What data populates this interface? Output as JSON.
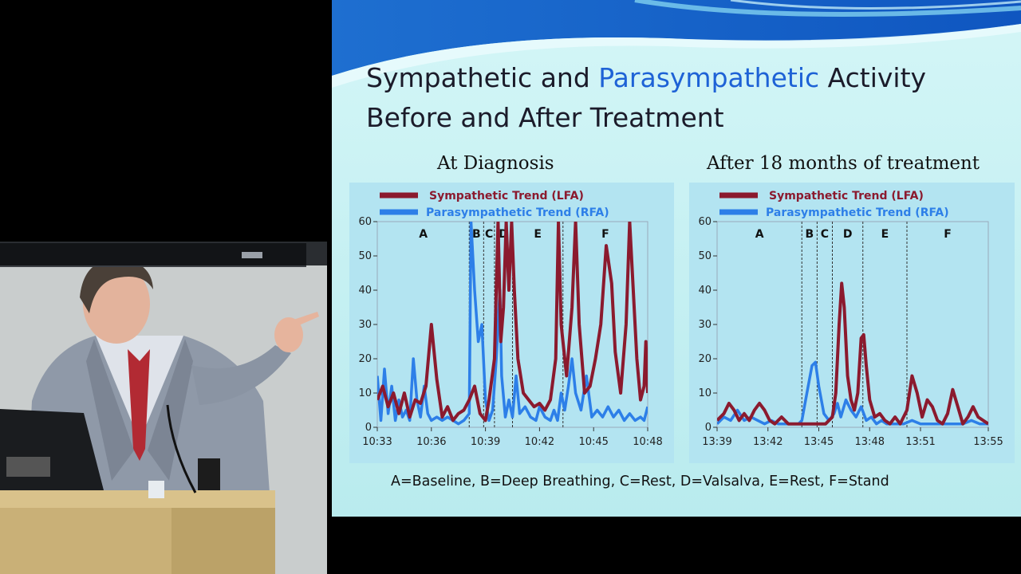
{
  "slide": {
    "title_line1_part1": "Sympathetic and ",
    "title_line1_highlight": "Parasympathetic",
    "title_line1_part2": " Activity",
    "title_line2": "Before and After Treatment",
    "subtitle_left": "At Diagnosis",
    "subtitle_right": "After 18 months of treatment",
    "caption": "A=Baseline, B=Deep Breathing, C=Rest, D=Valsalva, E=Rest, F=Stand"
  },
  "colors": {
    "sympathetic": "#8b1a2e",
    "parasympathetic": "#2d7fe8",
    "title_accent": "#1e62d6",
    "panel_bg": "#b3e4f1"
  },
  "chart_data": [
    {
      "type": "line",
      "title": "At Diagnosis",
      "ylim": [
        0,
        60
      ],
      "yticks": [
        0,
        10,
        20,
        30,
        40,
        50,
        60
      ],
      "xlim": [
        0,
        15
      ],
      "xticks": [
        {
          "x": 0,
          "label": "10:33"
        },
        {
          "x": 3,
          "label": "10:36"
        },
        {
          "x": 6,
          "label": "10:39"
        },
        {
          "x": 9,
          "label": "10:42"
        },
        {
          "x": 12,
          "label": "10:45"
        },
        {
          "x": 15,
          "label": "10:48"
        }
      ],
      "phases": [
        {
          "label": "A",
          "start": 0,
          "end": 5.1
        },
        {
          "label": "B",
          "start": 5.1,
          "end": 5.9
        },
        {
          "label": "C",
          "start": 5.9,
          "end": 6.5
        },
        {
          "label": "D",
          "start": 6.5,
          "end": 7.5
        },
        {
          "label": "E",
          "start": 7.5,
          "end": 10.3
        },
        {
          "label": "F",
          "start": 10.3,
          "end": 15
        }
      ],
      "series": [
        {
          "name": "Sympathetic Trend (LFA)",
          "points": [
            [
              0,
              8
            ],
            [
              0.3,
              12
            ],
            [
              0.6,
              6
            ],
            [
              0.9,
              10
            ],
            [
              1.2,
              4
            ],
            [
              1.5,
              10
            ],
            [
              1.8,
              3
            ],
            [
              2.1,
              8
            ],
            [
              2.4,
              7
            ],
            [
              2.7,
              12
            ],
            [
              3.0,
              30
            ],
            [
              3.3,
              14
            ],
            [
              3.6,
              3
            ],
            [
              3.9,
              6
            ],
            [
              4.2,
              2
            ],
            [
              4.5,
              4
            ],
            [
              4.8,
              5
            ],
            [
              5.1,
              8
            ],
            [
              5.4,
              12
            ],
            [
              5.7,
              4
            ],
            [
              6.0,
              2
            ],
            [
              6.2,
              8
            ],
            [
              6.5,
              20
            ],
            [
              6.7,
              60
            ],
            [
              6.85,
              25
            ],
            [
              7.0,
              35
            ],
            [
              7.15,
              60
            ],
            [
              7.3,
              40
            ],
            [
              7.45,
              60
            ],
            [
              7.6,
              40
            ],
            [
              7.8,
              20
            ],
            [
              8.1,
              10
            ],
            [
              8.4,
              8
            ],
            [
              8.7,
              6
            ],
            [
              9.0,
              7
            ],
            [
              9.3,
              5
            ],
            [
              9.6,
              8
            ],
            [
              9.9,
              20
            ],
            [
              10.05,
              60
            ],
            [
              10.2,
              30
            ],
            [
              10.5,
              15
            ],
            [
              10.8,
              35
            ],
            [
              11.0,
              60
            ],
            [
              11.2,
              30
            ],
            [
              11.5,
              10
            ],
            [
              11.8,
              12
            ],
            [
              12.1,
              20
            ],
            [
              12.4,
              30
            ],
            [
              12.7,
              53
            ],
            [
              13.0,
              42
            ],
            [
              13.2,
              22
            ],
            [
              13.5,
              10
            ],
            [
              13.8,
              30
            ],
            [
              14.0,
              60
            ],
            [
              14.2,
              40
            ],
            [
              14.4,
              20
            ],
            [
              14.6,
              8
            ],
            [
              14.8,
              12
            ],
            [
              14.9,
              25
            ],
            [
              15.0,
              10
            ]
          ]
        },
        {
          "name": "Parasympathetic Trend (RFA)",
          "points": [
            [
              0,
              15
            ],
            [
              0.2,
              2
            ],
            [
              0.4,
              17
            ],
            [
              0.6,
              4
            ],
            [
              0.8,
              12
            ],
            [
              1.0,
              2
            ],
            [
              1.2,
              8
            ],
            [
              1.4,
              3
            ],
            [
              1.6,
              5
            ],
            [
              1.8,
              2
            ],
            [
              2.0,
              20
            ],
            [
              2.2,
              8
            ],
            [
              2.4,
              3
            ],
            [
              2.6,
              12
            ],
            [
              2.8,
              4
            ],
            [
              3.0,
              2
            ],
            [
              3.3,
              3
            ],
            [
              3.6,
              2
            ],
            [
              3.9,
              3
            ],
            [
              4.2,
              2
            ],
            [
              4.5,
              1
            ],
            [
              4.8,
              2
            ],
            [
              5.1,
              4
            ],
            [
              5.2,
              60
            ],
            [
              5.4,
              40
            ],
            [
              5.6,
              25
            ],
            [
              5.8,
              30
            ],
            [
              6.0,
              8
            ],
            [
              6.2,
              2
            ],
            [
              6.4,
              5
            ],
            [
              6.6,
              20
            ],
            [
              6.8,
              40
            ],
            [
              6.9,
              15
            ],
            [
              7.1,
              3
            ],
            [
              7.3,
              8
            ],
            [
              7.5,
              3
            ],
            [
              7.7,
              15
            ],
            [
              7.9,
              4
            ],
            [
              8.2,
              6
            ],
            [
              8.5,
              3
            ],
            [
              8.8,
              2
            ],
            [
              9.0,
              6
            ],
            [
              9.3,
              3
            ],
            [
              9.6,
              2
            ],
            [
              9.8,
              5
            ],
            [
              10.0,
              2
            ],
            [
              10.2,
              10
            ],
            [
              10.4,
              5
            ],
            [
              10.6,
              12
            ],
            [
              10.8,
              20
            ],
            [
              11.0,
              10
            ],
            [
              11.3,
              5
            ],
            [
              11.6,
              15
            ],
            [
              11.9,
              3
            ],
            [
              12.2,
              5
            ],
            [
              12.5,
              3
            ],
            [
              12.8,
              6
            ],
            [
              13.1,
              3
            ],
            [
              13.4,
              5
            ],
            [
              13.7,
              2
            ],
            [
              14.0,
              4
            ],
            [
              14.3,
              2
            ],
            [
              14.6,
              3
            ],
            [
              14.8,
              2
            ],
            [
              15.0,
              6
            ]
          ]
        }
      ]
    },
    {
      "type": "line",
      "title": "After 18 months of treatment",
      "ylim": [
        0,
        60
      ],
      "yticks": [
        0,
        10,
        20,
        30,
        40,
        50,
        60
      ],
      "xlim": [
        0,
        16
      ],
      "xticks": [
        {
          "x": 0,
          "label": "13:39"
        },
        {
          "x": 3,
          "label": "13:42"
        },
        {
          "x": 6,
          "label": "13:45"
        },
        {
          "x": 9,
          "label": "13:48"
        },
        {
          "x": 12,
          "label": "13:51"
        },
        {
          "x": 16,
          "label": "13:55"
        }
      ],
      "phases": [
        {
          "label": "A",
          "start": 0,
          "end": 5.0
        },
        {
          "label": "B",
          "start": 5.0,
          "end": 5.9
        },
        {
          "label": "C",
          "start": 5.9,
          "end": 6.8
        },
        {
          "label": "D",
          "start": 6.8,
          "end": 8.6
        },
        {
          "label": "E",
          "start": 8.6,
          "end": 11.2
        },
        {
          "label": "F",
          "start": 11.2,
          "end": 16
        }
      ],
      "series": [
        {
          "name": "Sympathetic Trend (LFA)",
          "points": [
            [
              0,
              2
            ],
            [
              0.4,
              4
            ],
            [
              0.7,
              7
            ],
            [
              1.0,
              5
            ],
            [
              1.3,
              2
            ],
            [
              1.6,
              4
            ],
            [
              1.9,
              2
            ],
            [
              2.2,
              5
            ],
            [
              2.5,
              7
            ],
            [
              2.8,
              5
            ],
            [
              3.1,
              2
            ],
            [
              3.4,
              1
            ],
            [
              3.8,
              3
            ],
            [
              4.2,
              1
            ],
            [
              4.6,
              1
            ],
            [
              5.0,
              1
            ],
            [
              5.5,
              1
            ],
            [
              6.0,
              1
            ],
            [
              6.4,
              1
            ],
            [
              6.8,
              3
            ],
            [
              7.0,
              10
            ],
            [
              7.2,
              30
            ],
            [
              7.35,
              42
            ],
            [
              7.5,
              35
            ],
            [
              7.7,
              15
            ],
            [
              7.9,
              8
            ],
            [
              8.1,
              5
            ],
            [
              8.3,
              10
            ],
            [
              8.5,
              26
            ],
            [
              8.65,
              27
            ],
            [
              8.8,
              18
            ],
            [
              9.0,
              8
            ],
            [
              9.3,
              3
            ],
            [
              9.6,
              4
            ],
            [
              9.9,
              2
            ],
            [
              10.2,
              1
            ],
            [
              10.5,
              3
            ],
            [
              10.8,
              1
            ],
            [
              11.2,
              5
            ],
            [
              11.5,
              15
            ],
            [
              11.8,
              10
            ],
            [
              12.1,
              3
            ],
            [
              12.4,
              8
            ],
            [
              12.7,
              6
            ],
            [
              13.0,
              2
            ],
            [
              13.3,
              1
            ],
            [
              13.6,
              4
            ],
            [
              13.9,
              11
            ],
            [
              14.2,
              6
            ],
            [
              14.5,
              1
            ],
            [
              14.8,
              3
            ],
            [
              15.1,
              6
            ],
            [
              15.4,
              3
            ],
            [
              15.7,
              2
            ],
            [
              16.0,
              1
            ]
          ]
        },
        {
          "name": "Parasympathetic Trend (RFA)",
          "points": [
            [
              0,
              1
            ],
            [
              0.4,
              3
            ],
            [
              0.8,
              2
            ],
            [
              1.2,
              5
            ],
            [
              1.6,
              2
            ],
            [
              2.0,
              3
            ],
            [
              2.4,
              2
            ],
            [
              2.8,
              1
            ],
            [
              3.2,
              2
            ],
            [
              3.6,
              1
            ],
            [
              4.0,
              1
            ],
            [
              4.4,
              1
            ],
            [
              4.8,
              1
            ],
            [
              5.0,
              2
            ],
            [
              5.3,
              10
            ],
            [
              5.6,
              18
            ],
            [
              5.8,
              19
            ],
            [
              6.0,
              12
            ],
            [
              6.3,
              4
            ],
            [
              6.6,
              2
            ],
            [
              6.9,
              4
            ],
            [
              7.1,
              7
            ],
            [
              7.3,
              3
            ],
            [
              7.6,
              8
            ],
            [
              7.9,
              5
            ],
            [
              8.2,
              3
            ],
            [
              8.5,
              6
            ],
            [
              8.8,
              2
            ],
            [
              9.1,
              3
            ],
            [
              9.4,
              1
            ],
            [
              9.7,
              2
            ],
            [
              10.0,
              1
            ],
            [
              10.5,
              1
            ],
            [
              11.0,
              1
            ],
            [
              11.5,
              2
            ],
            [
              12.0,
              1
            ],
            [
              12.5,
              1
            ],
            [
              13.0,
              1
            ],
            [
              13.5,
              1
            ],
            [
              14.0,
              1
            ],
            [
              14.5,
              1
            ],
            [
              15.0,
              2
            ],
            [
              15.5,
              1
            ],
            [
              16.0,
              1
            ]
          ]
        }
      ]
    }
  ]
}
